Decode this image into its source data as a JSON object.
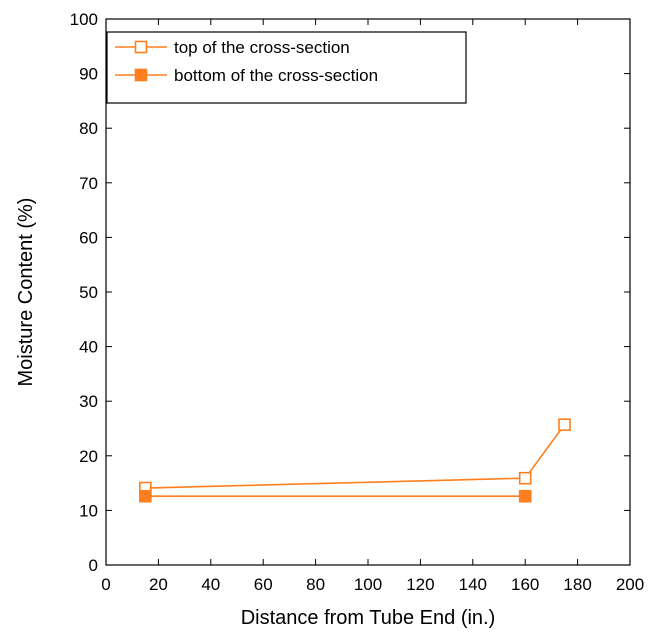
{
  "chart_data": {
    "type": "line",
    "xlabel": "Distance from Tube End (in.)",
    "ylabel": "Moisture Content (%)",
    "xlim": [
      0,
      200
    ],
    "ylim": [
      0,
      100
    ],
    "xticks": [
      0,
      20,
      40,
      60,
      80,
      100,
      120,
      140,
      160,
      180,
      200
    ],
    "yticks": [
      0,
      10,
      20,
      30,
      40,
      50,
      60,
      70,
      80,
      90,
      100
    ],
    "grid": false,
    "legend_position": "top-left",
    "series": [
      {
        "name": "top of the cross-section",
        "marker": "hollow-square",
        "color": "#ff7f1e",
        "x": [
          15,
          160,
          175
        ],
        "y": [
          14.1,
          15.9,
          25.7
        ]
      },
      {
        "name": "bottom of the cross-section",
        "marker": "filled-square",
        "color": "#ff7f1e",
        "x": [
          15,
          160
        ],
        "y": [
          12.6,
          12.6
        ]
      }
    ]
  }
}
